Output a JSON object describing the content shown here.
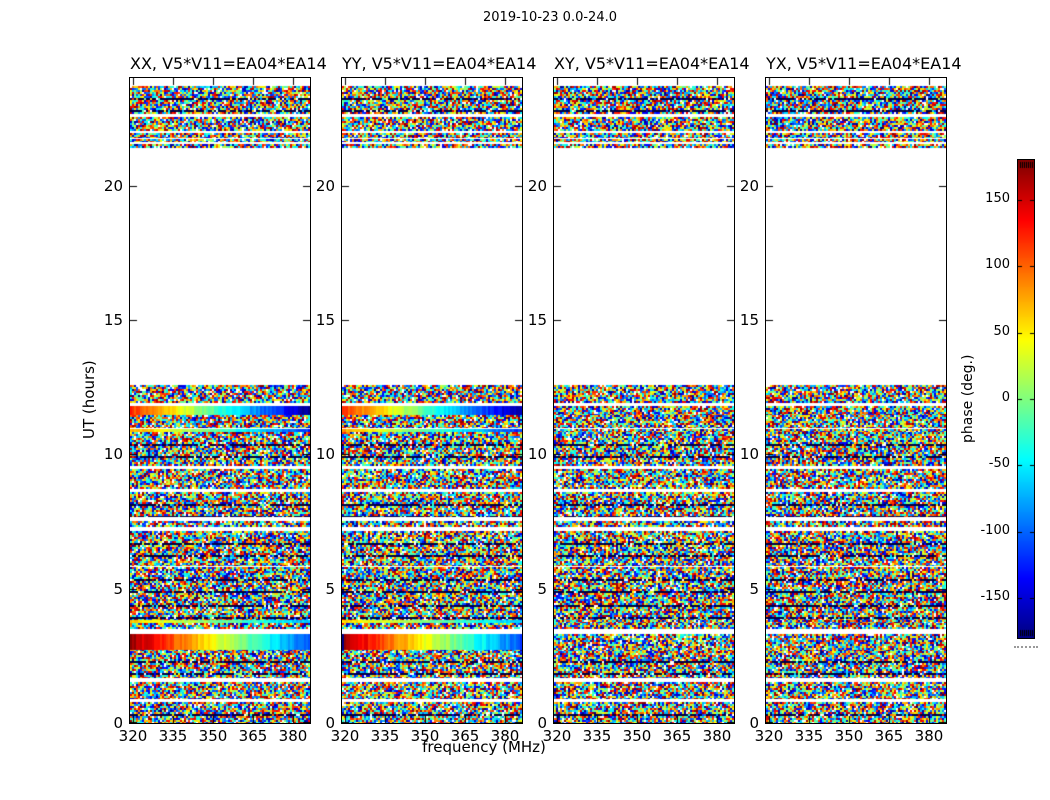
{
  "chart_data": {
    "type": "heatmap",
    "title": "2019-10-23 0.0-24.0",
    "xlabel": "frequency (MHz)",
    "ylabel": "UT (hours)",
    "x_ticks": [
      320,
      335,
      350,
      365,
      380
    ],
    "y_ticks": [
      0,
      5,
      10,
      15,
      20
    ],
    "x_range_mhz": [
      318.9,
      386.4
    ],
    "y_range_hours": [
      0,
      24
    ],
    "grid": false,
    "panels": [
      {
        "label": "XX, V5*V11=EA04*EA14",
        "ramps": true
      },
      {
        "label": "YY, V5*V11=EA04*EA14",
        "ramps": true
      },
      {
        "label": "XY, V5*V11=EA04*EA14",
        "ramps": false
      },
      {
        "label": "YX, V5*V11=EA04*EA14",
        "ramps": false
      }
    ],
    "colorbar": {
      "label": "phase (deg.)",
      "ticks": [
        150,
        100,
        50,
        0,
        -50,
        -100,
        -150
      ],
      "vmin": -180,
      "vmax": 180,
      "colormap": "jet",
      "position": "right"
    },
    "bands_ut_hours": [
      {
        "t0": 0.0,
        "t1": 0.78,
        "kind": "noise"
      },
      {
        "t0": 0.89,
        "t1": 1.49,
        "kind": "noise"
      },
      {
        "t0": 1.67,
        "t1": 2.72,
        "kind": "noise"
      },
      {
        "t0": 2.72,
        "t1": 3.31,
        "kind": "ramp",
        "p0": 170,
        "p1": -110
      },
      {
        "t0": 3.53,
        "t1": 3.72,
        "kind": "noise"
      },
      {
        "t0": 3.72,
        "t1": 3.83,
        "kind": "ramp",
        "p0": 60,
        "p1": -70
      },
      {
        "t0": 3.83,
        "t1": 5.77,
        "kind": "noise"
      },
      {
        "t0": 5.84,
        "t1": 7.11,
        "kind": "noise"
      },
      {
        "t0": 7.29,
        "t1": 7.51,
        "kind": "noise"
      },
      {
        "t0": 7.66,
        "t1": 8.59,
        "kind": "noise"
      },
      {
        "t0": 8.71,
        "t1": 9.45,
        "kind": "noise"
      },
      {
        "t0": 9.56,
        "t1": 10.81,
        "kind": "noise"
      },
      {
        "t0": 10.81,
        "t1": 10.92,
        "kind": "ramp",
        "p0": 80,
        "p1": -120
      },
      {
        "t0": 11.01,
        "t1": 11.46,
        "kind": "noise"
      },
      {
        "t0": 11.46,
        "t1": 11.76,
        "kind": "ramp",
        "p0": 120,
        "p1": -175
      },
      {
        "t0": 11.91,
        "t1": 12.57,
        "kind": "noise"
      },
      {
        "t0": 21.4,
        "t1": 21.54,
        "kind": "noise"
      },
      {
        "t0": 21.64,
        "t1": 21.73,
        "kind": "noise"
      },
      {
        "t0": 21.8,
        "t1": 21.95,
        "kind": "noise"
      },
      {
        "t0": 22.02,
        "t1": 22.54,
        "kind": "noise"
      },
      {
        "t0": 22.69,
        "t1": 23.7,
        "kind": "noise"
      }
    ]
  }
}
